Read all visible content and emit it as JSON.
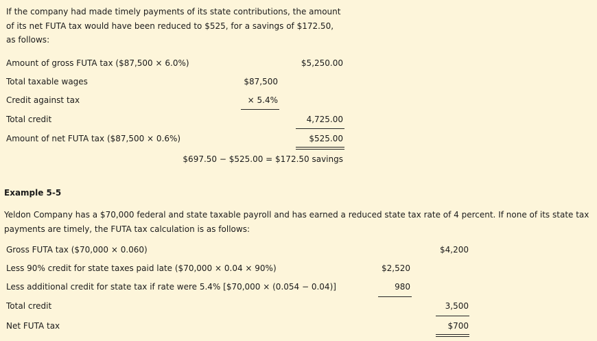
{
  "intro": {
    "lines": [
      "If the company had made timely payments of its state contributions, the amount",
      "of its net FUTA tax would have been reduced to $525, for a savings of $172.50,",
      "as follows:"
    ]
  },
  "table1": {
    "rows": [
      {
        "label": "Amount of gross FUTA tax ($87,500 × 6.0%)",
        "col1": "",
        "col2": "$5,250.00"
      },
      {
        "label": "Total taxable wages",
        "col1": "$87,500",
        "col2": ""
      },
      {
        "label": "Credit against tax",
        "col1": "× 5.4%",
        "col2": ""
      },
      {
        "label": "Total credit",
        "col1": "",
        "col2": "4,725.00"
      },
      {
        "label": "Amount of net FUTA tax ($87,500 × 0.6%)",
        "col1": "",
        "col2": "$525.00"
      }
    ],
    "savings": "$697.50 − $525.00 = $172.50 savings"
  },
  "example": {
    "heading": "Example 5-5",
    "lines": [
      "Yeldon Company has a $70,000 federal and state taxable payroll and has earned a reduced state tax rate of 4 percent. If none of its state tax",
      "payments are timely, the FUTA tax calculation is as follows:"
    ]
  },
  "table2": {
    "rows": [
      {
        "label": "Gross FUTA tax ($70,000 × 0.060)",
        "col1": "",
        "col2": "$4,200"
      },
      {
        "label": "Less 90% credit for state taxes paid late ($70,000 × 0.04 × 90%)",
        "col1": "$2,520",
        "col2": ""
      },
      {
        "label": "Less additional credit for state tax if rate were 5.4% [$70,000 × (0.054 − 0.04)]",
        "col1": "980",
        "col2": ""
      },
      {
        "label": "Total credit",
        "col1": "",
        "col2": "3,500"
      },
      {
        "label": "Net FUTA tax",
        "col1": "",
        "col2": "$700"
      }
    ]
  }
}
